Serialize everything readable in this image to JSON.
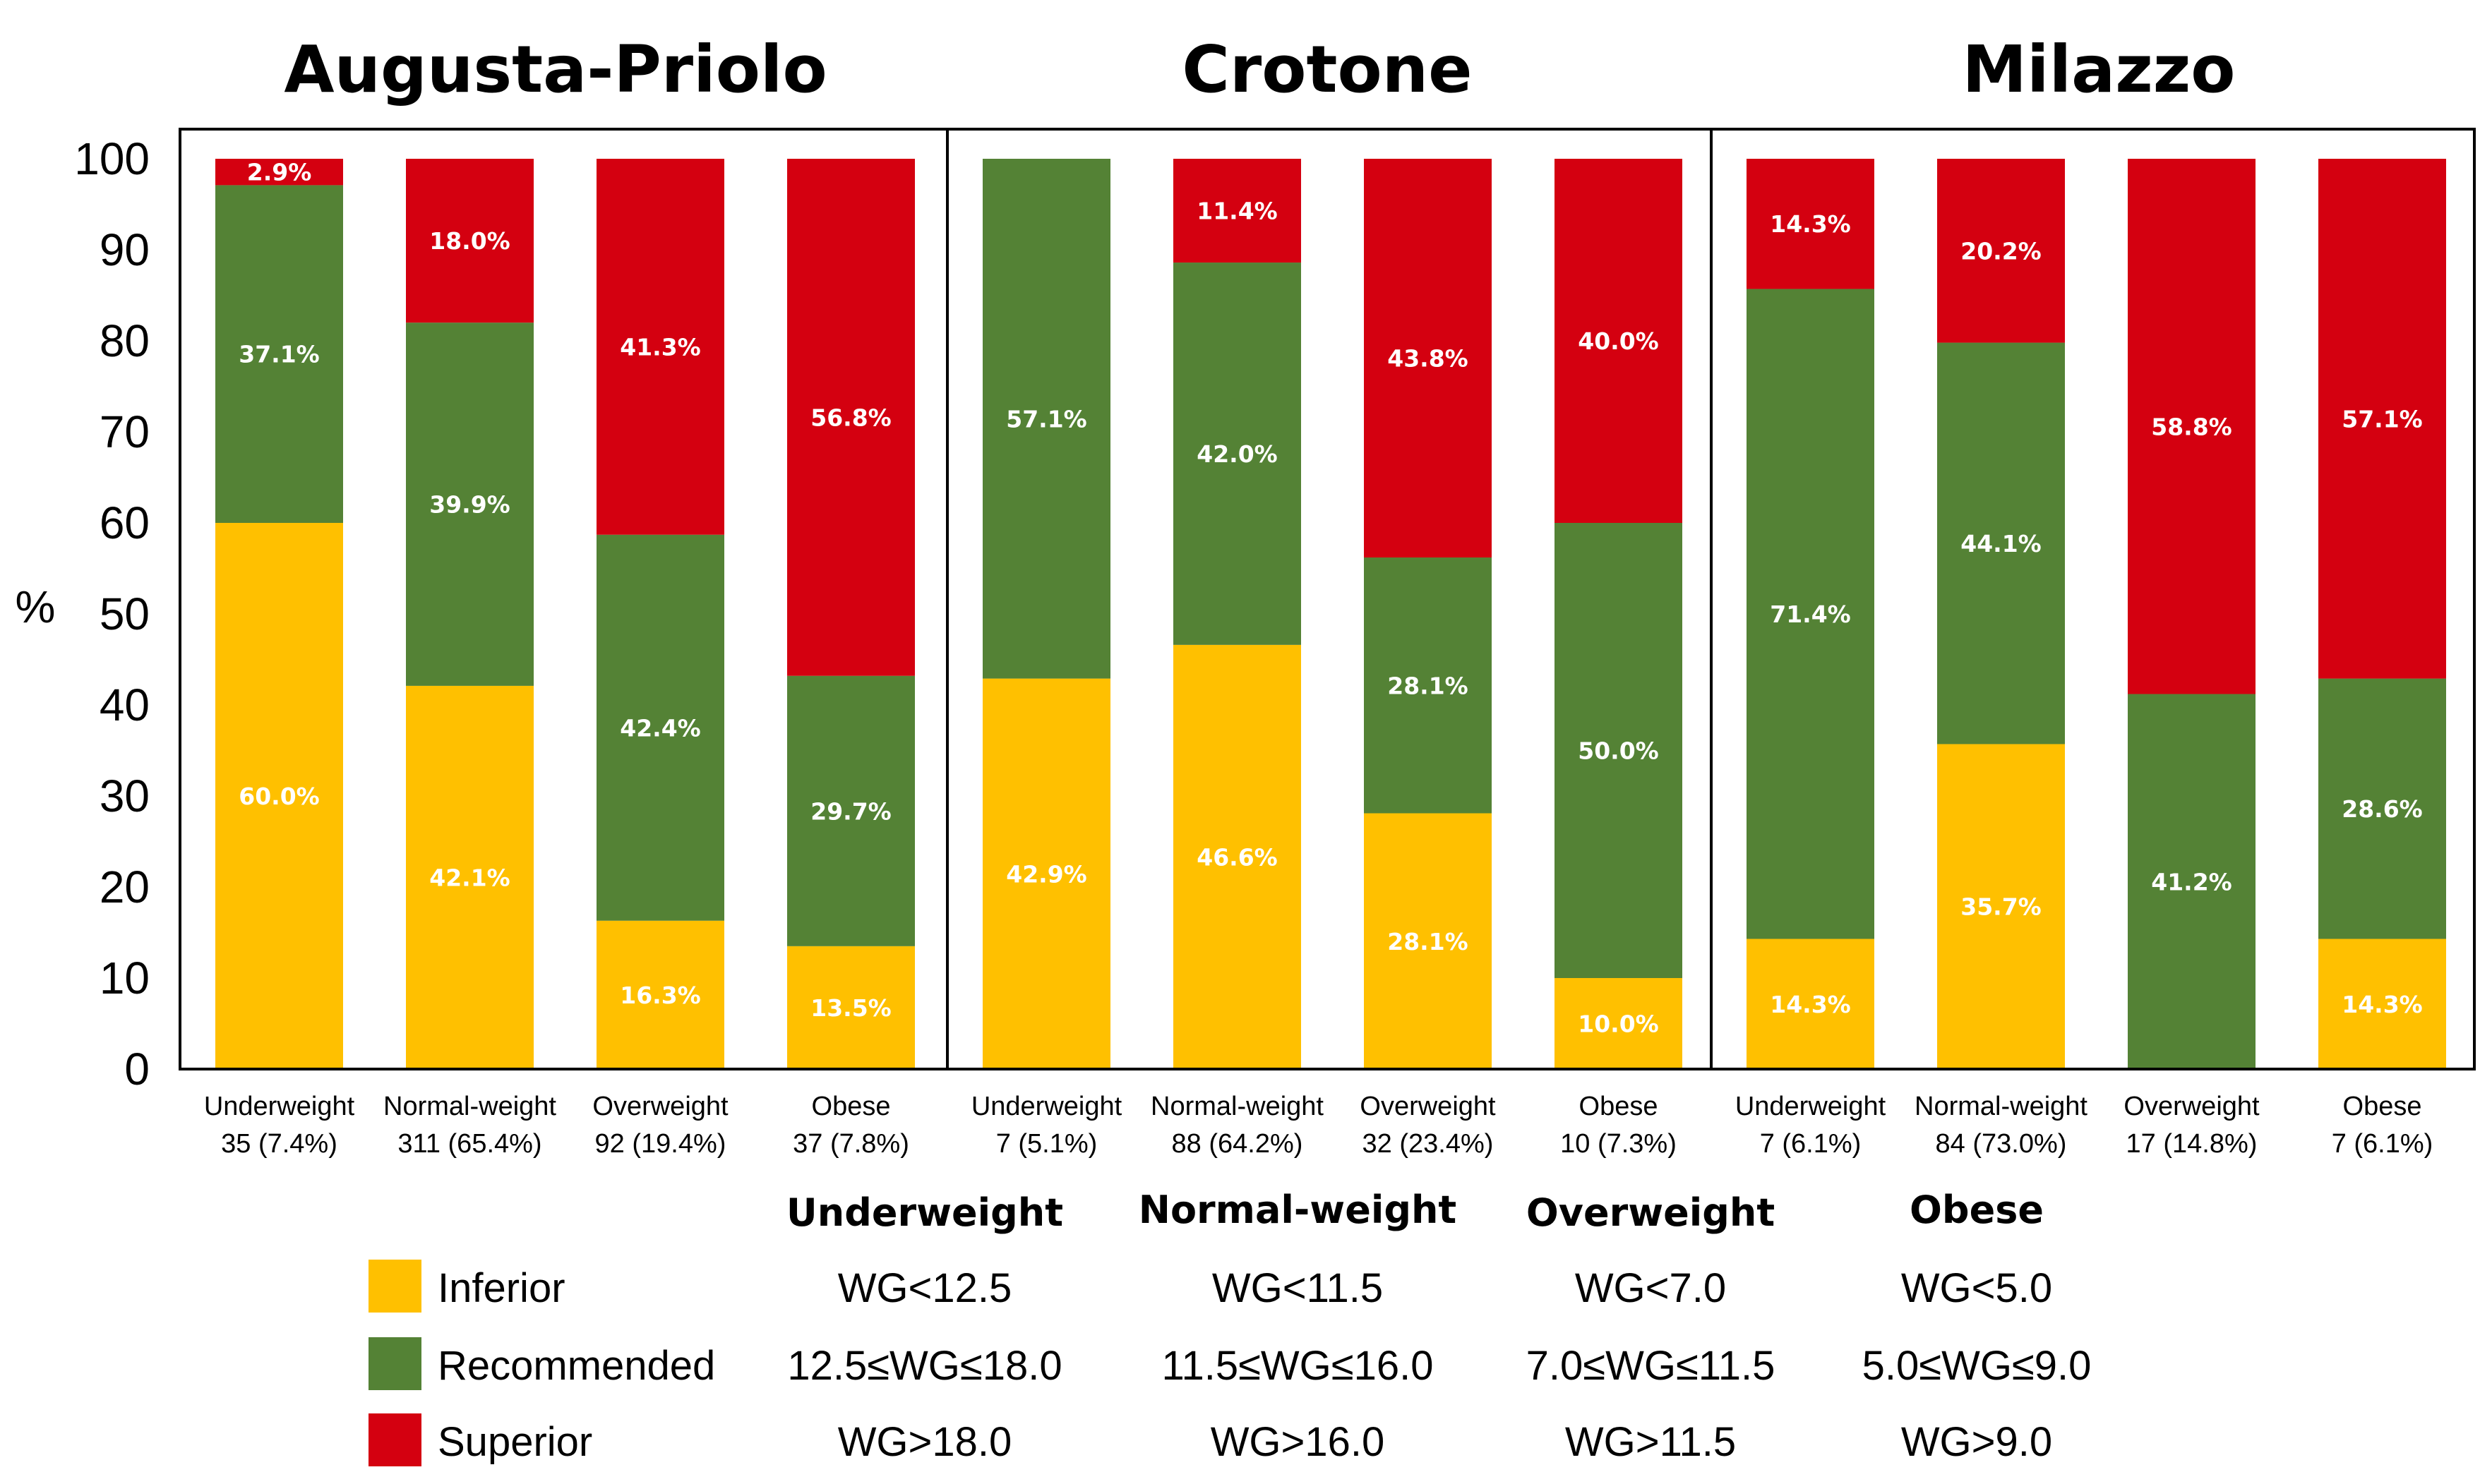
{
  "chart_data": {
    "type": "bar",
    "stacked": true,
    "ylabel": "%",
    "ylim": [
      0,
      100
    ],
    "yticks": [
      0,
      10,
      20,
      30,
      40,
      50,
      60,
      70,
      80,
      90,
      100
    ],
    "series_names": [
      "Inferior",
      "Recommended",
      "Superior"
    ],
    "colors": {
      "Inferior": "#FFC000",
      "Recommended": "#548235",
      "Superior": "#D40010"
    },
    "panels": [
      {
        "title": "Augusta-Priolo",
        "categories": [
          {
            "name": "Underweight",
            "count": "35 (7.4%)",
            "values": [
              60.0,
              37.1,
              2.9
            ],
            "labels": [
              "60.0%",
              "37.1%",
              "2.9%"
            ]
          },
          {
            "name": "Normal-weight",
            "count": "311 (65.4%)",
            "values": [
              42.1,
              39.9,
              18.0
            ],
            "labels": [
              "42.1%",
              "39.9%",
              "18.0%"
            ]
          },
          {
            "name": "Overweight",
            "count": "92 (19.4%)",
            "values": [
              16.3,
              42.4,
              41.3
            ],
            "labels": [
              "16.3%",
              "42.4%",
              "41.3%"
            ]
          },
          {
            "name": "Obese",
            "count": "37 (7.8%)",
            "values": [
              13.5,
              29.7,
              56.8
            ],
            "labels": [
              "13.5%",
              "29.7%",
              "56.8%"
            ]
          }
        ]
      },
      {
        "title": "Crotone",
        "categories": [
          {
            "name": "Underweight",
            "count": "7 (5.1%)",
            "values": [
              42.9,
              57.1,
              0
            ],
            "labels": [
              "42.9%",
              "57.1%",
              ""
            ]
          },
          {
            "name": "Normal-weight",
            "count": "88 (64.2%)",
            "values": [
              46.6,
              42.0,
              11.4
            ],
            "labels": [
              "46.6%",
              "42.0%",
              "11.4%"
            ]
          },
          {
            "name": "Overweight",
            "count": "32 (23.4%)",
            "values": [
              28.1,
              28.1,
              43.8
            ],
            "labels": [
              "28.1%",
              "28.1%",
              "43.8%"
            ]
          },
          {
            "name": "Obese",
            "count": "10 (7.3%)",
            "values": [
              10.0,
              50.0,
              40.0
            ],
            "labels": [
              "10.0%",
              "50.0%",
              "40.0%"
            ]
          }
        ]
      },
      {
        "title": "Milazzo",
        "categories": [
          {
            "name": "Underweight",
            "count": "7 (6.1%)",
            "values": [
              14.3,
              71.4,
              14.3
            ],
            "labels": [
              "14.3%",
              "71.4%",
              "14.3%"
            ]
          },
          {
            "name": "Normal-weight",
            "count": "84 (73.0%)",
            "values": [
              35.7,
              44.1,
              20.2
            ],
            "labels": [
              "35.7%",
              "44.1%",
              "20.2%"
            ]
          },
          {
            "name": "Overweight",
            "count": "17 (14.8%)",
            "values": [
              0,
              41.2,
              58.8
            ],
            "labels": [
              "",
              "41.2%",
              "58.8%"
            ]
          },
          {
            "name": "Obese",
            "count": "7 (6.1%)",
            "values": [
              14.3,
              28.6,
              57.1
            ],
            "labels": [
              "14.3%",
              "28.6%",
              "57.1%"
            ]
          }
        ]
      }
    ]
  },
  "legend": {
    "headers": [
      "Underweight",
      "Normal-weight",
      "Overweight",
      "Obese"
    ],
    "rows": [
      {
        "label": "Inferior",
        "cells": [
          "WG<12.5",
          "WG<11.5",
          "WG<7.0",
          "WG<5.0"
        ]
      },
      {
        "label": "Recommended",
        "cells": [
          "12.5≤WG≤18.0",
          "11.5≤WG≤16.0",
          "7.0≤WG≤11.5",
          "5.0≤WG≤9.0"
        ]
      },
      {
        "label": "Superior",
        "cells": [
          "WG>18.0",
          "WG>16.0",
          "WG>11.5",
          "WG>9.0"
        ]
      }
    ]
  }
}
